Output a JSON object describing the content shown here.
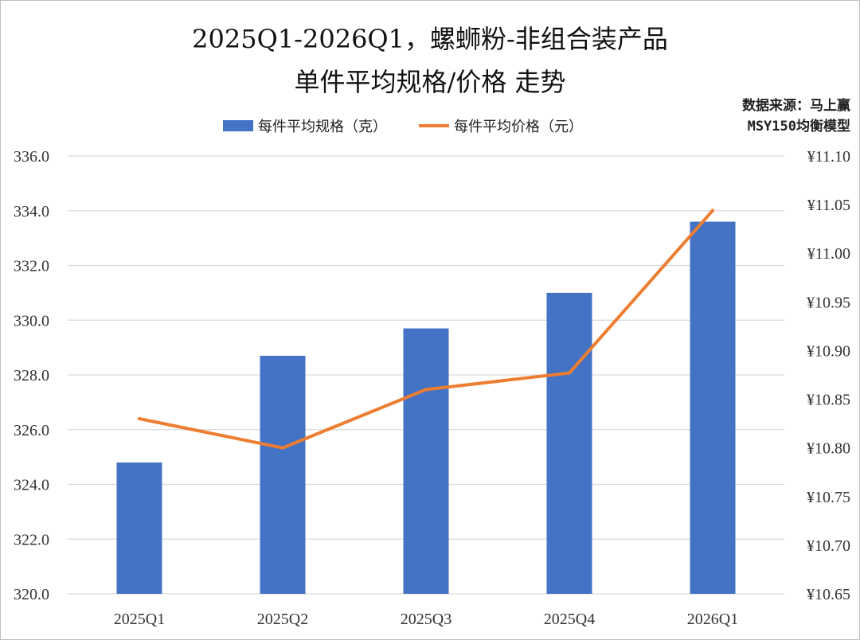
{
  "title_line1": "2025Q1-2026Q1，螺蛳粉-非组合装产品",
  "title_line2": "单件平均规格/价格 走势",
  "source_line1": "数据来源：马上赢",
  "source_line2": "MSY150均衡模型",
  "legend": {
    "bar_label": "每件平均规格（克）",
    "line_label": "每件平均价格（元）"
  },
  "colors": {
    "bar": "#4472C4",
    "line": "#ED7D31",
    "grid": "#d9d9d9"
  },
  "chart_data": {
    "type": "bar",
    "categories": [
      "2025Q1",
      "2025Q2",
      "2025Q3",
      "2025Q4",
      "2026Q1"
    ],
    "series": [
      {
        "name": "每件平均规格（克）",
        "type": "bar",
        "axis": "left",
        "values": [
          324.8,
          328.7,
          329.7,
          331.0,
          333.6
        ]
      },
      {
        "name": "每件平均价格（元）",
        "type": "line",
        "axis": "right",
        "values": [
          10.83,
          10.8,
          10.86,
          10.877,
          11.044
        ]
      }
    ],
    "y_left": {
      "min": 320,
      "max": 336,
      "step": 2,
      "ticks": [
        "320.0",
        "322.0",
        "324.0",
        "326.0",
        "328.0",
        "330.0",
        "332.0",
        "334.0",
        "336.0"
      ]
    },
    "y_right": {
      "min": 10.65,
      "max": 11.1,
      "step": 0.05,
      "ticks": [
        "¥10.65",
        "¥10.70",
        "¥10.75",
        "¥10.80",
        "¥10.85",
        "¥10.90",
        "¥10.95",
        "¥11.00",
        "¥11.05",
        "¥11.10"
      ]
    },
    "grid": true,
    "legend_position": "top"
  }
}
